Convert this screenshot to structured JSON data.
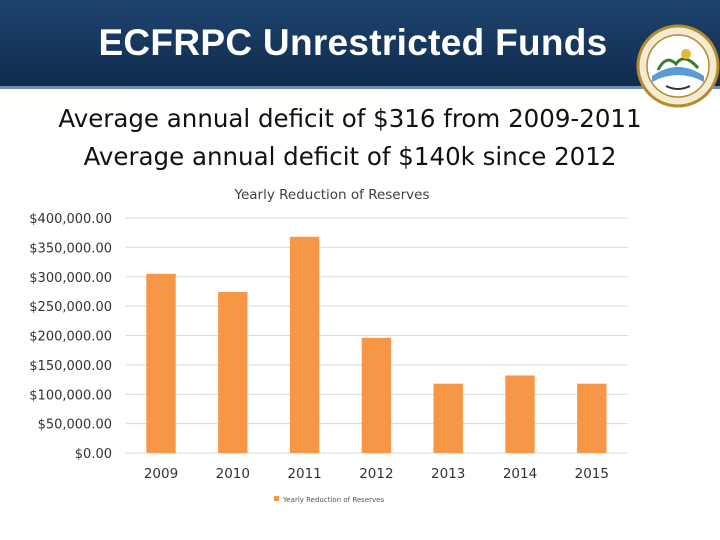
{
  "slide": {
    "title": "ECFRPC Unrestricted Funds",
    "subtitle_1": "Average annual deficit  of $316 from 2009-2011",
    "subtitle_2": "Average annual deficit of $140k since 2012"
  },
  "colors": {
    "header": "#16365c",
    "bar": "#f79646",
    "gridline": "#d9d9d9"
  },
  "chart_data": {
    "type": "bar",
    "title": "Yearly Reduction of Reserves",
    "categories": [
      "2009",
      "2010",
      "2011",
      "2012",
      "2013",
      "2014",
      "2015"
    ],
    "series": [
      {
        "name": "Yearly Reduction of Reserves",
        "values": [
          305000,
          274000,
          368000,
          196000,
          118000,
          132000,
          118000
        ]
      }
    ],
    "ylim": [
      0,
      400000
    ],
    "yticks": [
      0,
      50000,
      100000,
      150000,
      200000,
      250000,
      300000,
      350000,
      400000
    ],
    "ytick_labels": [
      "$0.00",
      "$50,000.00",
      "$100,000.00",
      "$150,000.00",
      "$200,000.00",
      "$250,000.00",
      "$300,000.00",
      "$350,000.00",
      "$400,000.00"
    ],
    "xlabel": "",
    "ylabel": "",
    "grid": true,
    "legend": "bottom"
  }
}
